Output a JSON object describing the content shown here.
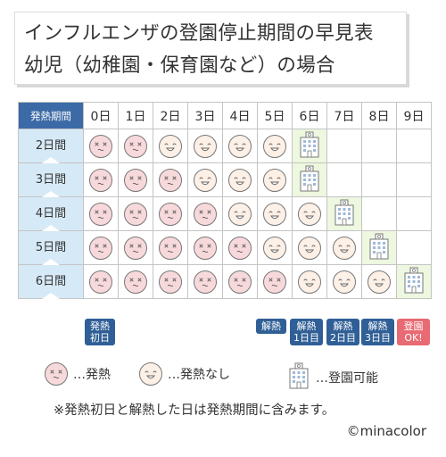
{
  "title": {
    "line1": "インフルエンザの登園停止期間の早見表",
    "line2": "幼児（幼稚園・保育園など）の場合"
  },
  "table": {
    "corner_label": "発熱期間",
    "day_headers": [
      "0日",
      "1日",
      "2日",
      "3日",
      "4日",
      "5日",
      "6日",
      "7日",
      "8日",
      "9日"
    ],
    "rows": [
      {
        "label": "2日間",
        "cells": [
          "fever",
          "fever",
          "nofever",
          "nofever",
          "nofever",
          "nofever",
          "ok",
          "",
          "",
          ""
        ]
      },
      {
        "label": "3日間",
        "cells": [
          "fever",
          "fever",
          "fever",
          "nofever",
          "nofever",
          "nofever",
          "ok",
          "",
          "",
          ""
        ]
      },
      {
        "label": "4日間",
        "cells": [
          "fever",
          "fever",
          "fever",
          "fever",
          "nofever",
          "nofever",
          "nofever",
          "ok",
          "",
          ""
        ]
      },
      {
        "label": "5日間",
        "cells": [
          "fever",
          "fever",
          "fever",
          "fever",
          "fever",
          "nofever",
          "nofever",
          "nofever",
          "ok",
          ""
        ]
      },
      {
        "label": "6日間",
        "cells": [
          "fever",
          "fever",
          "fever",
          "fever",
          "fever",
          "fever",
          "nofever",
          "nofever",
          "nofever",
          "ok"
        ]
      }
    ]
  },
  "tags": {
    "fever_start": "発熱\n初日",
    "fever_end": "解熱",
    "day1": "解熱\n1日目",
    "day2": "解熱\n2日目",
    "day3": "解熱\n3日目",
    "ok": "登園\nOK!"
  },
  "legend": {
    "fever": "…発熱",
    "nofever": "…発熱なし",
    "ok": "…登園可能"
  },
  "note": "※発熱初日と解熱した日は発熱期間に含みます。",
  "credit": "©minacolor",
  "colors": {
    "corner_bg": "#3b6aa6",
    "rowlabel_bg": "#d6e9f6",
    "fever_face": "#f8d9db",
    "nofever_face": "#fdf0e6",
    "ok_cell": "#eef7df",
    "tag_blue": "#2f5f96",
    "tag_red": "#e86a73"
  }
}
